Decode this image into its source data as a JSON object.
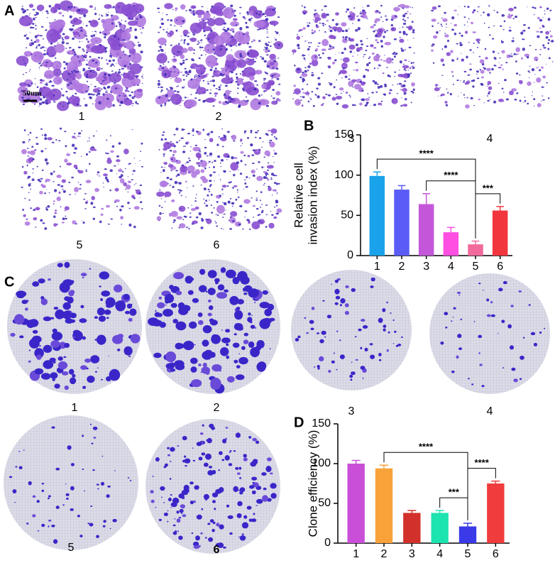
{
  "panel_labels": [
    "A",
    "B",
    "C",
    "D"
  ],
  "panel_a": {
    "scale_bar": "50um",
    "captions": [
      "1",
      "2",
      "3",
      "4",
      "5",
      "6"
    ]
  },
  "panel_c": {
    "captions": [
      "1",
      "2",
      "3",
      "4",
      "5",
      "6"
    ]
  },
  "chart_data": [
    {
      "type": "bar",
      "y_label": [
        "Relative cell",
        "invasion index (%)"
      ],
      "categories": [
        "1",
        "2",
        "3",
        "4",
        "5",
        "6"
      ],
      "values": [
        99,
        82,
        64,
        29,
        14,
        56
      ],
      "errors": [
        5,
        5,
        13,
        6,
        4,
        5
      ],
      "colors": [
        "#1aa3ea",
        "#5b5cf6",
        "#c457d9",
        "#ff4fe2",
        "#f26a9c",
        "#f2363e"
      ],
      "ylim": [
        0,
        150
      ],
      "yticks": [
        0,
        50,
        100,
        150
      ],
      "annotations": [
        {
          "label": "****",
          "between": [
            "1",
            "5"
          ]
        },
        {
          "label": "****",
          "between": [
            "3",
            "5"
          ]
        },
        {
          "label": "***",
          "between": [
            "5",
            "6"
          ]
        }
      ]
    },
    {
      "type": "bar",
      "y_label": [
        "Clone efficiency (%)"
      ],
      "categories": [
        "1",
        "2",
        "3",
        "4",
        "5",
        "6"
      ],
      "values": [
        100,
        94,
        38,
        38,
        21,
        75
      ],
      "errors": [
        4,
        4,
        3,
        3,
        4,
        3
      ],
      "colors": [
        "#c94fd8",
        "#f8a23a",
        "#d2302a",
        "#1de3b0",
        "#3a3ae8",
        "#f03c3c"
      ],
      "ylim": [
        0,
        150
      ],
      "yticks": [
        0,
        50,
        100,
        150
      ],
      "annotations": [
        {
          "label": "****",
          "between": [
            "2",
            "5"
          ]
        },
        {
          "label": "***",
          "between": [
            "4",
            "5"
          ]
        },
        {
          "label": "****",
          "between": [
            "5",
            "6"
          ]
        }
      ]
    }
  ]
}
